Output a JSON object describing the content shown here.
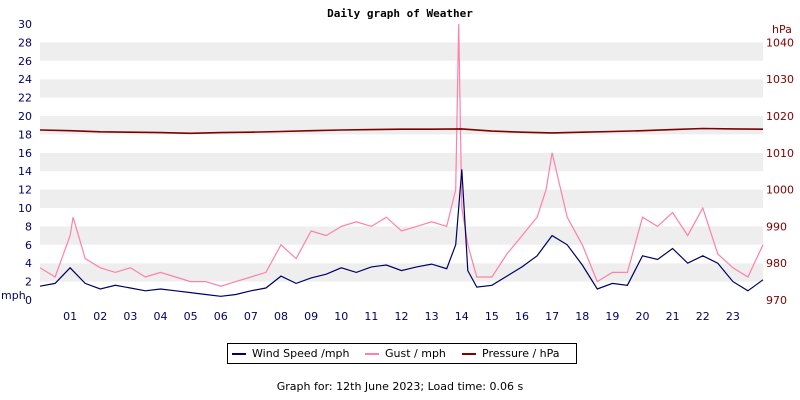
{
  "colors": {
    "wind": "#000066",
    "gust": "#ff80a8",
    "pressure": "#800000",
    "left_axis": "#000066",
    "right_axis": "#800000"
  },
  "footer": "Graph for: 12th June 2023; Load time: 0.06 s",
  "chart_data": {
    "type": "line",
    "title": "Daily graph of Weather",
    "left_axis": {
      "unit": "mph",
      "ylim": [
        0,
        30
      ],
      "ticks": [
        0,
        2,
        4,
        6,
        8,
        10,
        12,
        14,
        16,
        18,
        20,
        22,
        24,
        26,
        28,
        30
      ]
    },
    "right_axis": {
      "unit": "hPa",
      "ylim": [
        970,
        1045
      ],
      "ticks": [
        970,
        980,
        990,
        1000,
        1010,
        1020,
        1030,
        1040
      ]
    },
    "x_ticks": [
      "01",
      "02",
      "03",
      "04",
      "05",
      "06",
      "07",
      "08",
      "09",
      "10",
      "11",
      "12",
      "13",
      "14",
      "15",
      "16",
      "17",
      "18",
      "19",
      "20",
      "21",
      "22",
      "23"
    ],
    "x_range_hours": [
      0,
      24
    ],
    "grid": "horizontal bands",
    "legend_position": "bottom",
    "series": [
      {
        "name": "Wind Speed /mph",
        "axis": "left",
        "x": [
          0.0,
          0.5,
          1.0,
          1.5,
          2.0,
          2.5,
          3.0,
          3.5,
          4.0,
          4.5,
          5.0,
          5.5,
          6.0,
          6.5,
          7.0,
          7.5,
          8.0,
          8.5,
          9.0,
          9.5,
          10.0,
          10.5,
          11.0,
          11.5,
          12.0,
          12.5,
          13.0,
          13.5,
          13.8,
          14.0,
          14.2,
          14.5,
          15.0,
          15.5,
          16.0,
          16.5,
          17.0,
          17.5,
          18.0,
          18.5,
          19.0,
          19.5,
          20.0,
          20.5,
          21.0,
          21.5,
          22.0,
          22.5,
          23.0,
          23.5,
          24.0
        ],
        "values": [
          1.5,
          1.8,
          3.5,
          1.8,
          1.2,
          1.6,
          1.3,
          1.0,
          1.2,
          1.0,
          0.8,
          0.6,
          0.4,
          0.6,
          1.0,
          1.3,
          2.6,
          1.8,
          2.4,
          2.8,
          3.5,
          3.0,
          3.6,
          3.8,
          3.2,
          3.6,
          3.9,
          3.4,
          6.0,
          14.2,
          3.2,
          1.4,
          1.6,
          2.6,
          3.6,
          4.8,
          7.0,
          6.0,
          3.8,
          1.2,
          1.8,
          1.6,
          4.8,
          4.4,
          5.6,
          4.0,
          4.8,
          4.0,
          2.0,
          1.0,
          2.2
        ]
      },
      {
        "name": "Gust / mph",
        "axis": "left",
        "x": [
          0.0,
          0.5,
          1.0,
          1.1,
          1.5,
          2.0,
          2.5,
          3.0,
          3.5,
          4.0,
          4.5,
          5.0,
          5.5,
          6.0,
          6.5,
          7.0,
          7.5,
          8.0,
          8.5,
          9.0,
          9.5,
          10.0,
          10.5,
          11.0,
          11.5,
          12.0,
          12.5,
          13.0,
          13.5,
          13.8,
          13.9,
          14.0,
          14.2,
          14.5,
          15.0,
          15.5,
          16.0,
          16.5,
          16.8,
          17.0,
          17.5,
          18.0,
          18.5,
          19.0,
          19.5,
          20.0,
          20.5,
          21.0,
          21.5,
          22.0,
          22.5,
          23.0,
          23.5,
          24.0
        ],
        "values": [
          3.5,
          2.5,
          7.0,
          9.0,
          4.5,
          3.5,
          3.0,
          3.5,
          2.5,
          3.0,
          2.5,
          2.0,
          2.0,
          1.5,
          2.0,
          2.5,
          3.0,
          6.0,
          4.5,
          7.5,
          7.0,
          8.0,
          8.5,
          8.0,
          9.0,
          7.5,
          8.0,
          8.5,
          8.0,
          12.0,
          30.0,
          10.0,
          6.0,
          2.5,
          2.5,
          5.0,
          7.0,
          9.0,
          12.0,
          16.0,
          9.0,
          6.0,
          2.0,
          3.0,
          3.0,
          9.0,
          8.0,
          9.5,
          7.0,
          10.0,
          5.0,
          3.5,
          2.5,
          6.0
        ]
      },
      {
        "name": "Pressure / hPa",
        "axis": "right",
        "x": [
          0,
          1,
          2,
          3,
          4,
          5,
          6,
          7,
          8,
          9,
          10,
          11,
          12,
          13,
          14,
          15,
          16,
          17,
          18,
          19,
          20,
          21,
          22,
          23,
          24
        ],
        "values": [
          1016.2,
          1016.0,
          1015.7,
          1015.6,
          1015.5,
          1015.3,
          1015.5,
          1015.6,
          1015.8,
          1016.0,
          1016.2,
          1016.3,
          1016.4,
          1016.4,
          1016.5,
          1015.9,
          1015.6,
          1015.4,
          1015.6,
          1015.8,
          1016.0,
          1016.3,
          1016.6,
          1016.5,
          1016.4
        ]
      }
    ]
  }
}
